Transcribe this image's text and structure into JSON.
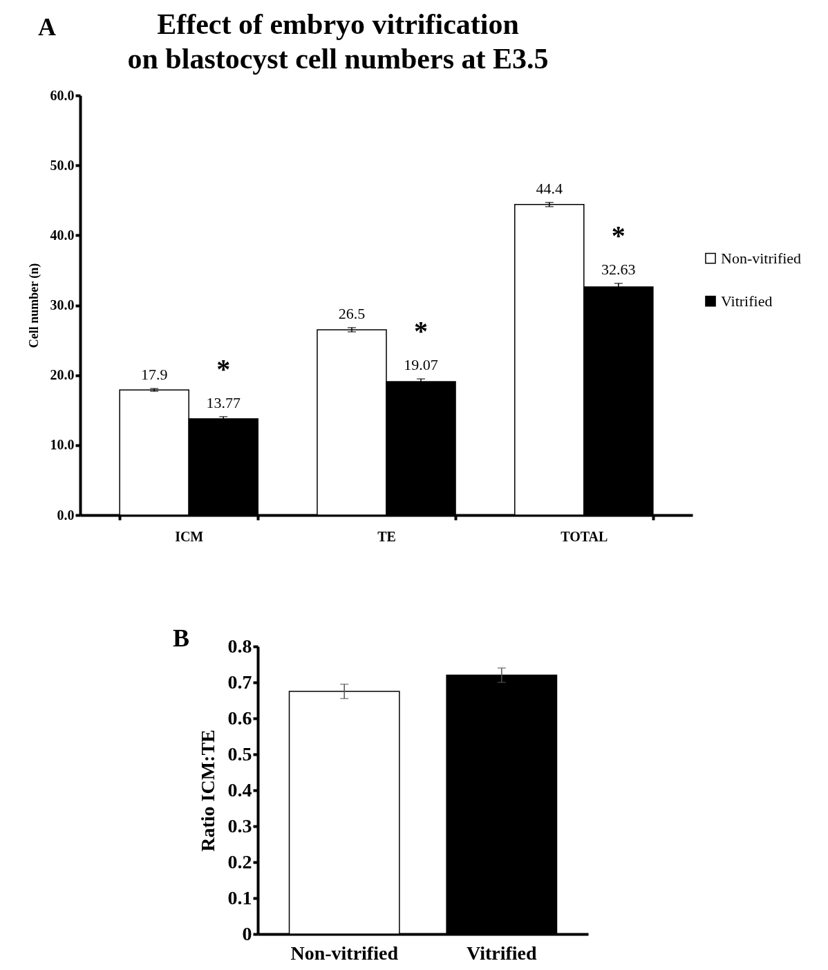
{
  "chart_data": [
    {
      "type": "bar",
      "title": "Effect of embryo vitrification\non blastocyst cell numbers at E3.5",
      "ylabel": "Cell number (n)",
      "categories": [
        "ICM",
        "TE",
        "TOTAL"
      ],
      "series": [
        {
          "name": "Non-vitrified",
          "color": "#ffffff",
          "values": [
            17.9,
            26.5,
            44.4
          ],
          "errors": [
            0.2,
            0.3,
            0.3
          ]
        },
        {
          "name": "Vitrified",
          "color": "#000000",
          "values": [
            13.77,
            19.07,
            32.63
          ],
          "errors": [
            0.3,
            0.4,
            0.5
          ]
        }
      ],
      "ylim": [
        0,
        60
      ],
      "yticks": [
        {
          "value": 0,
          "label": "0.0"
        },
        {
          "value": 10,
          "label": "10.0"
        },
        {
          "value": 20,
          "label": "20.0"
        },
        {
          "value": 30,
          "label": "30.0"
        },
        {
          "value": 40,
          "label": "40.0"
        },
        {
          "value": 50,
          "label": "50.0"
        },
        {
          "value": 60,
          "label": "60.0"
        }
      ],
      "data_labels": true,
      "legend": "right",
      "grid": false,
      "annotations": [
        "A",
        "*",
        "*",
        "*"
      ]
    },
    {
      "type": "bar",
      "ylabel": "Ratio ICM:TE",
      "categories": [
        "Non-vitrified",
        "Vitrified"
      ],
      "values": [
        0.675,
        0.72
      ],
      "colors": [
        "#ffffff",
        "#000000"
      ],
      "errors": [
        0.02,
        0.02
      ],
      "ylim": [
        0,
        0.8
      ],
      "yticks": [
        0,
        0.1,
        0.2,
        0.3,
        0.4,
        0.5,
        0.6,
        0.7,
        0.8
      ],
      "grid": false,
      "annotations": [
        "B"
      ]
    }
  ]
}
